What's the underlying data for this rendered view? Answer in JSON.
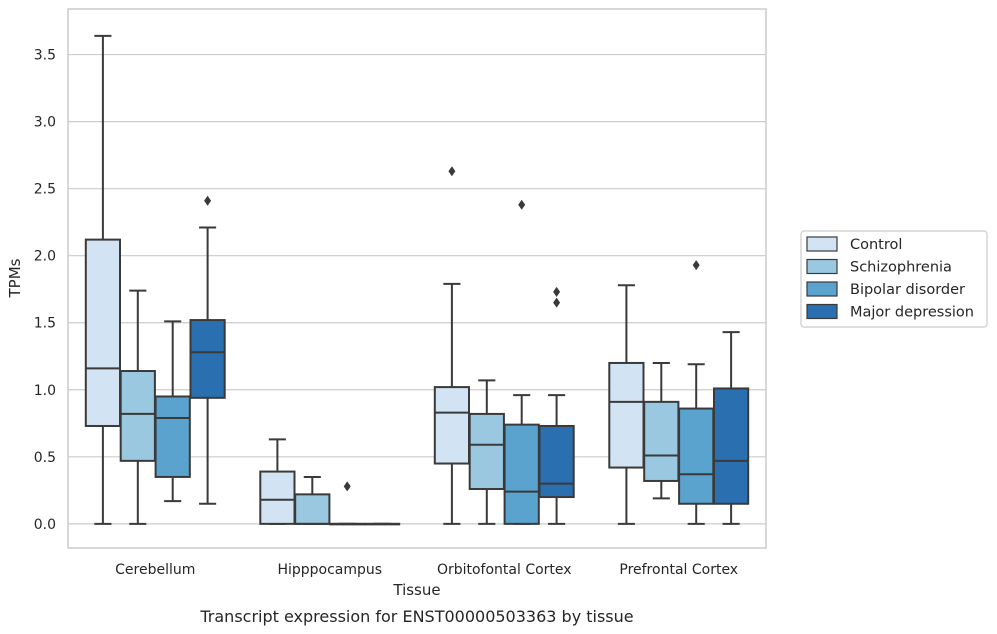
{
  "chart_data": {
    "type": "boxplot",
    "title": "",
    "caption": "Transcript expression for ENST00000503363 by tissue",
    "xlabel": "Tissue",
    "ylabel": "TPMs",
    "ylim": [
      -0.18,
      3.84
    ],
    "yticks": [
      0.0,
      0.5,
      1.0,
      1.5,
      2.0,
      2.5,
      3.0,
      3.5
    ],
    "ytick_labels": [
      "0.0",
      "0.5",
      "1.0",
      "1.5",
      "2.0",
      "2.5",
      "3.0",
      "3.5"
    ],
    "grid": "horizontal",
    "legend_position": "right",
    "categories": [
      "Cerebellum",
      "Hipppocampus",
      "Orbitofontal Cortex",
      "Prefrontal Cortex"
    ],
    "series": [
      {
        "name": "Control",
        "color": "#d2e3f3",
        "boxes": [
          {
            "min": 0.0,
            "q1": 0.73,
            "median": 1.16,
            "q3": 2.12,
            "max": 3.64,
            "outliers": []
          },
          {
            "min": 0.0,
            "q1": 0.0,
            "median": 0.18,
            "q3": 0.39,
            "max": 0.63,
            "outliers": []
          },
          {
            "min": 0.0,
            "q1": 0.45,
            "median": 0.83,
            "q3": 1.02,
            "max": 1.79,
            "outliers": [
              2.63
            ]
          },
          {
            "min": 0.0,
            "q1": 0.42,
            "median": 0.91,
            "q3": 1.2,
            "max": 1.78,
            "outliers": []
          }
        ]
      },
      {
        "name": "Schizophrenia",
        "color": "#9ac8e0",
        "boxes": [
          {
            "min": 0.0,
            "q1": 0.47,
            "median": 0.82,
            "q3": 1.14,
            "max": 1.74,
            "outliers": []
          },
          {
            "min": 0.0,
            "q1": 0.0,
            "median": 0.0,
            "q3": 0.22,
            "max": 0.35,
            "outliers": []
          },
          {
            "min": 0.0,
            "q1": 0.26,
            "median": 0.59,
            "q3": 0.82,
            "max": 1.07,
            "outliers": []
          },
          {
            "min": 0.19,
            "q1": 0.32,
            "median": 0.51,
            "q3": 0.91,
            "max": 1.2,
            "outliers": []
          }
        ]
      },
      {
        "name": "Bipolar disorder",
        "color": "#5ba3cf",
        "boxes": [
          {
            "min": 0.17,
            "q1": 0.35,
            "median": 0.79,
            "q3": 0.95,
            "max": 1.51,
            "outliers": []
          },
          {
            "min": 0.0,
            "q1": 0.0,
            "median": 0.0,
            "q3": 0.0,
            "max": 0.0,
            "outliers": [
              0.28
            ]
          },
          {
            "min": 0.0,
            "q1": 0.0,
            "median": 0.24,
            "q3": 0.74,
            "max": 0.96,
            "outliers": [
              2.38
            ]
          },
          {
            "min": 0.0,
            "q1": 0.15,
            "median": 0.37,
            "q3": 0.86,
            "max": 1.19,
            "outliers": [
              1.93
            ]
          }
        ]
      },
      {
        "name": "Major depression",
        "color": "#2a6fb0",
        "boxes": [
          {
            "min": 0.15,
            "q1": 0.94,
            "median": 1.28,
            "q3": 1.52,
            "max": 2.21,
            "outliers": [
              2.41
            ]
          },
          {
            "min": 0.0,
            "q1": 0.0,
            "median": 0.0,
            "q3": 0.0,
            "max": 0.0,
            "outliers": []
          },
          {
            "min": 0.0,
            "q1": 0.2,
            "median": 0.3,
            "q3": 0.73,
            "max": 0.96,
            "outliers": [
              1.65,
              1.73
            ]
          },
          {
            "min": 0.0,
            "q1": 0.15,
            "median": 0.47,
            "q3": 1.01,
            "max": 1.43,
            "outliers": []
          }
        ]
      }
    ]
  }
}
